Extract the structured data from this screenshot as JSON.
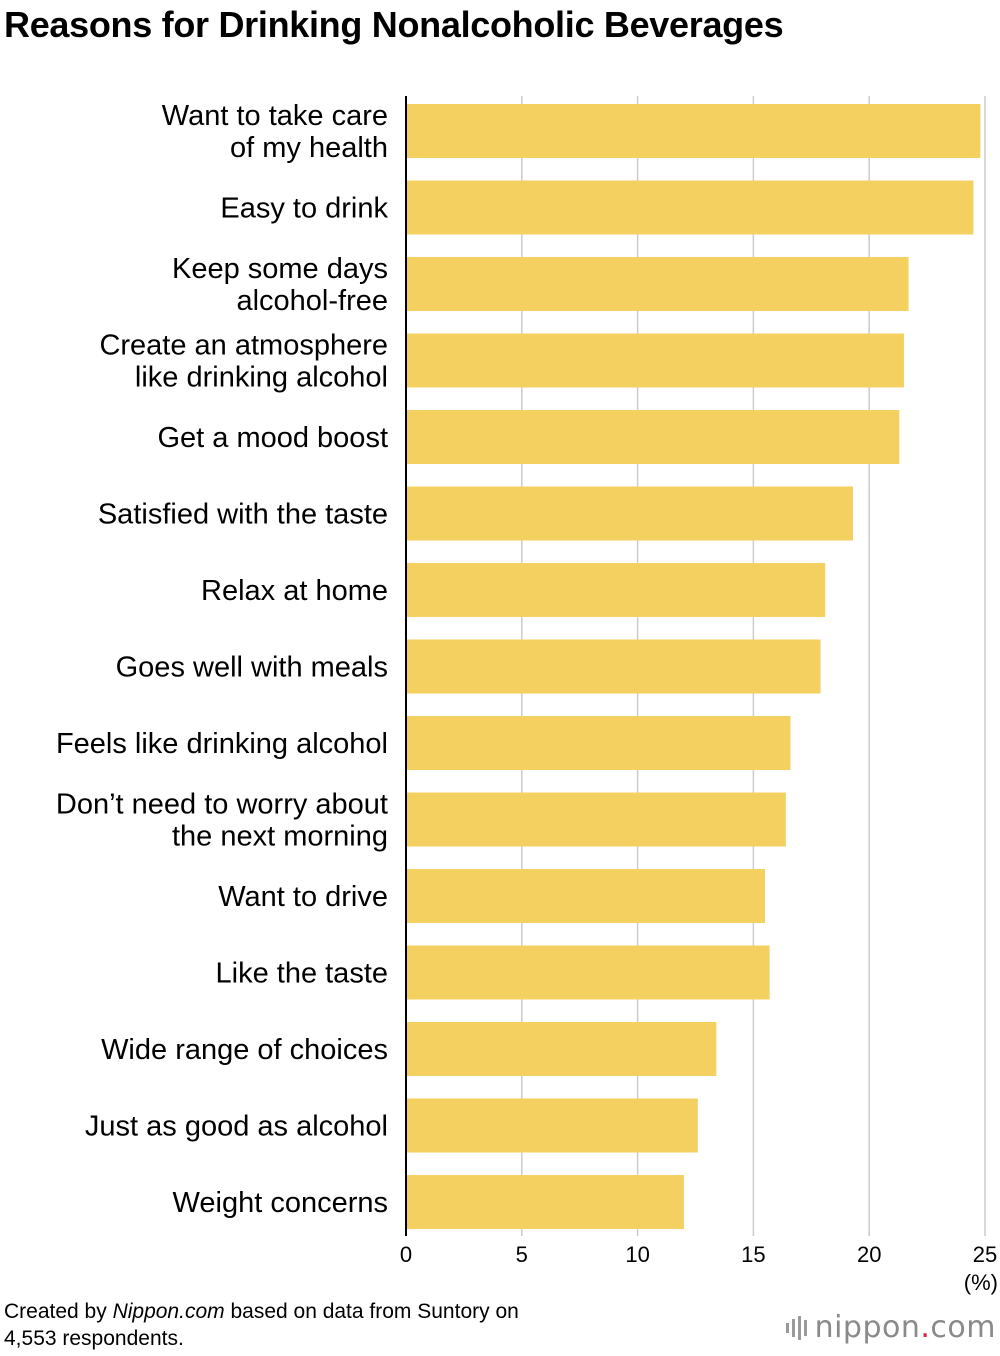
{
  "title": "Reasons for Drinking Nonalcoholic Beverages",
  "source_prefix": "Created by ",
  "source_site": "Nippon.com",
  "source_suffix": " based on data from Suntory on",
  "source_line2": "4,553 respondents.",
  "logo": {
    "part1": "nippon",
    "dot": ".",
    "part2": "com",
    "icon": "sound-wave-icon"
  },
  "colors": {
    "bar": "#f4d061",
    "grid": "#cccccc",
    "axis": "#000000",
    "logo_dot": "#d7263d"
  },
  "chart_data": {
    "type": "bar",
    "orientation": "horizontal",
    "categories": [
      [
        "Want to take care",
        "of my health"
      ],
      [
        "Easy to drink"
      ],
      [
        "Keep some days",
        "alcohol-free"
      ],
      [
        "Create an atmosphere",
        "like drinking alcohol"
      ],
      [
        "Get a mood boost"
      ],
      [
        "Satisfied with the taste"
      ],
      [
        "Relax at home"
      ],
      [
        "Goes well with meals"
      ],
      [
        "Feels like drinking alcohol"
      ],
      [
        "Don’t need to worry about",
        "the next morning"
      ],
      [
        "Want to drive"
      ],
      [
        "Like the taste"
      ],
      [
        "Wide range of choices"
      ],
      [
        "Just as good as alcohol"
      ],
      [
        "Weight concerns"
      ]
    ],
    "values": [
      24.8,
      24.5,
      21.7,
      21.5,
      21.3,
      19.3,
      18.1,
      17.9,
      16.6,
      16.4,
      15.5,
      15.7,
      13.4,
      12.6,
      12.0
    ],
    "xlim": [
      0,
      25
    ],
    "xticks": [
      "0",
      "5",
      "10",
      "15",
      "20",
      "25"
    ],
    "xunit": "(%)",
    "grid": true
  }
}
